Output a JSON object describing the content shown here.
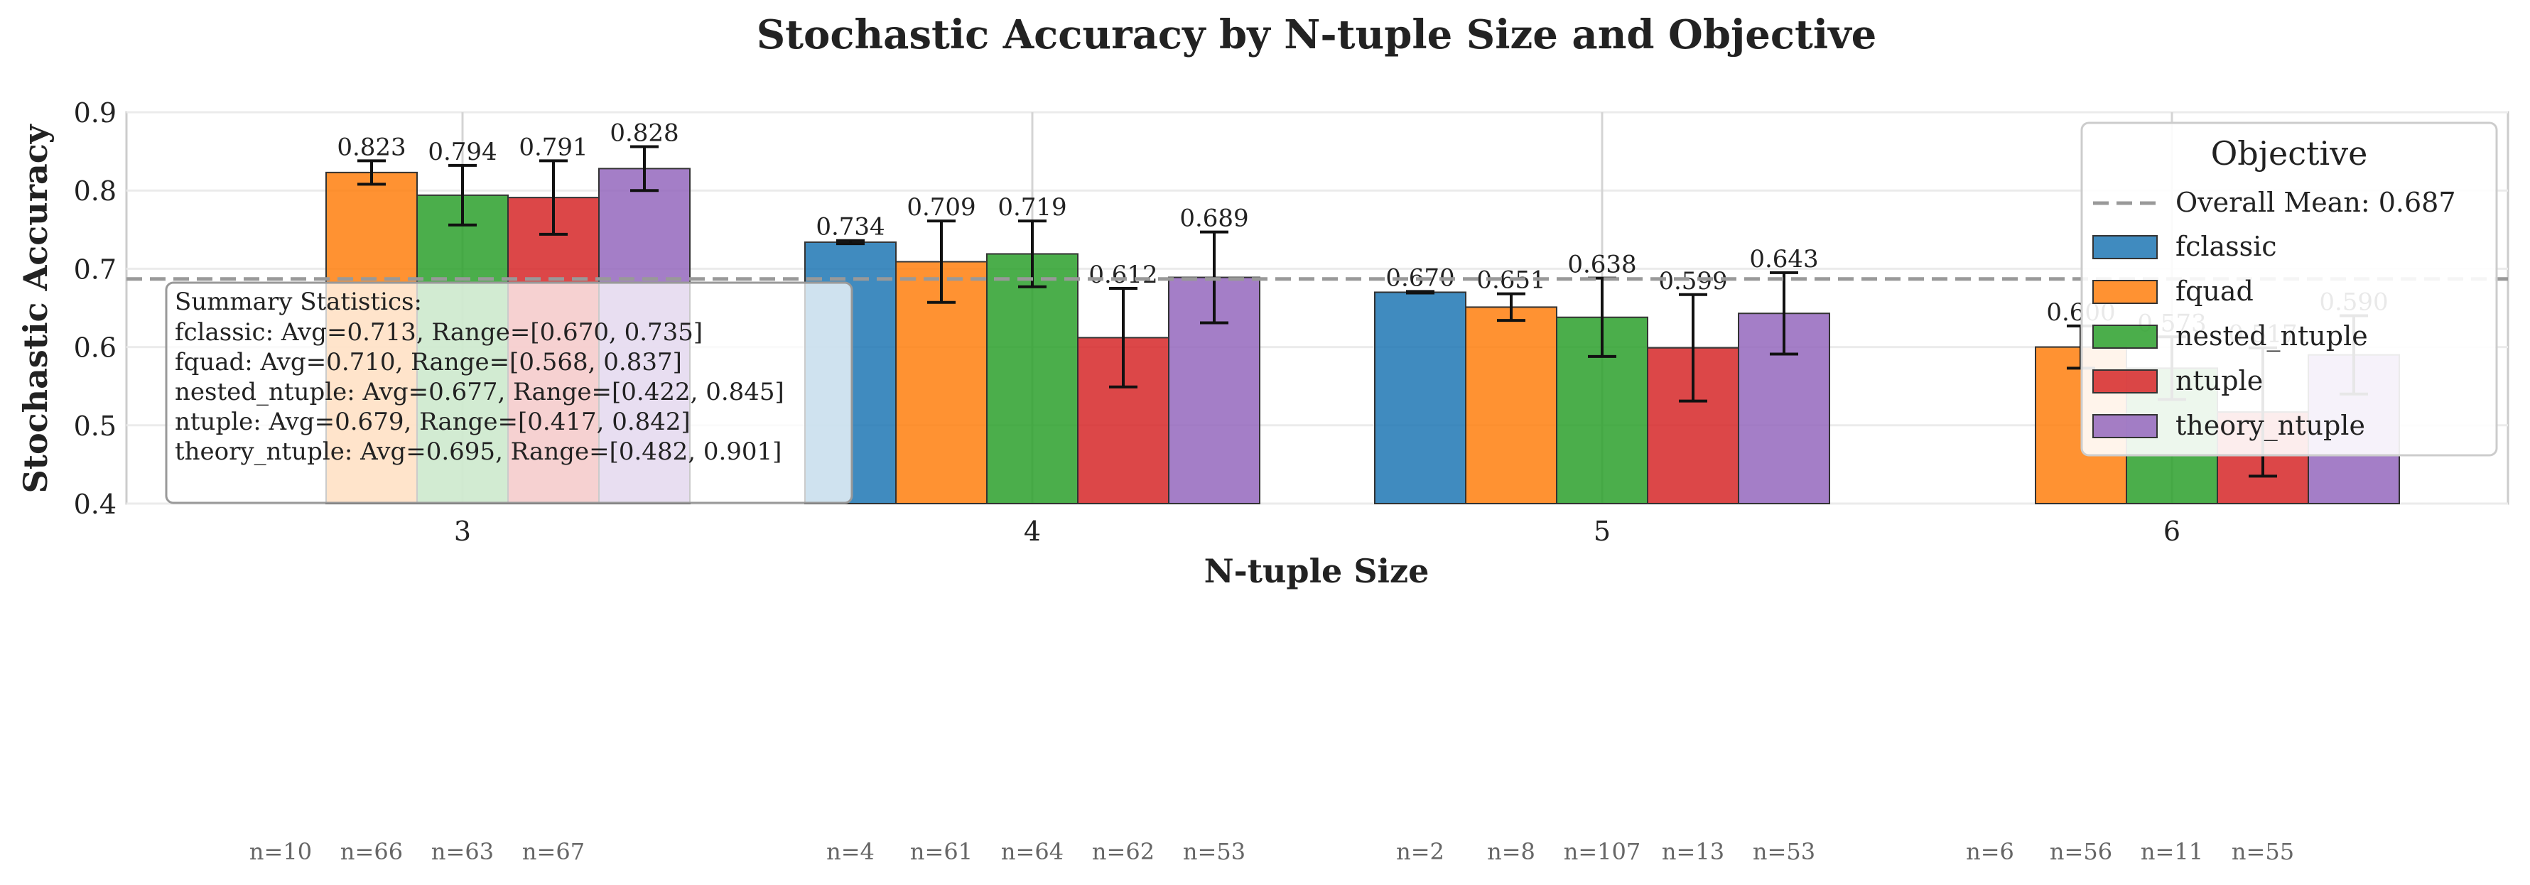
{
  "chart_data": {
    "type": "bar",
    "title": "Stochastic Accuracy by N-tuple Size and Objective",
    "xlabel": "N-tuple Size",
    "ylabel": "Stochastic Accuracy",
    "ylim": [
      0.4,
      0.9
    ],
    "yticks": [
      "0.4",
      "0.5",
      "0.6",
      "0.7",
      "0.8",
      "0.9"
    ],
    "categories": [
      "3",
      "4",
      "5",
      "6"
    ],
    "grid": true,
    "legend_title": "Objective",
    "legend_position": "top-right",
    "overall_mean": 0.687,
    "overall_mean_label": "Overall Mean: 0.687",
    "series": [
      {
        "name": "fclassic",
        "color": "#1f77b4",
        "values": [
          null,
          0.734,
          0.67,
          null
        ],
        "err": [
          null,
          0.002,
          0.001,
          null
        ],
        "labels": [
          "",
          "0.734",
          "0.670",
          ""
        ],
        "n": [
          "n=10",
          "n=4",
          "n=2",
          "n=6"
        ]
      },
      {
        "name": "fquad",
        "color": "#ff7f0e",
        "values": [
          0.823,
          0.709,
          0.651,
          0.6
        ],
        "err": [
          0.015,
          0.052,
          0.017,
          0.027
        ],
        "labels": [
          "0.823",
          "0.709",
          "0.651",
          "0.600"
        ],
        "n": [
          "n=66",
          "n=61",
          "n=8",
          "n=56"
        ]
      },
      {
        "name": "nested_ntuple",
        "color": "#2ca02c",
        "values": [
          0.794,
          0.719,
          0.638,
          0.573
        ],
        "err": [
          0.038,
          0.042,
          0.05,
          0.04
        ],
        "labels": [
          "0.794",
          "0.719",
          "0.638",
          "0.573"
        ],
        "n": [
          "n=63",
          "n=64",
          "n=107",
          "n=11"
        ]
      },
      {
        "name": "ntuple",
        "color": "#d62728",
        "values": [
          0.791,
          0.612,
          0.599,
          0.517
        ],
        "err": [
          0.047,
          0.063,
          0.068,
          0.082
        ],
        "labels": [
          "0.791",
          "0.612",
          "0.599",
          "0.517"
        ],
        "n": [
          "n=67",
          "n=62",
          "n=13",
          "n=55"
        ]
      },
      {
        "name": "theory_ntuple",
        "color": "#9467bd",
        "values": [
          0.828,
          0.689,
          0.643,
          0.59
        ],
        "err": [
          0.028,
          0.058,
          0.052,
          0.05
        ],
        "labels": [
          "0.828",
          "0.689",
          "0.643",
          "0.590"
        ],
        "n": [
          "",
          "n=53",
          "n=53",
          ""
        ]
      }
    ],
    "summary_box": {
      "title": "Summary Statistics:",
      "lines": [
        "fclassic: Avg=0.713, Range=[0.670, 0.735]",
        "fquad: Avg=0.710, Range=[0.568, 0.837]",
        "nested_ntuple: Avg=0.677, Range=[0.422, 0.845]",
        "ntuple: Avg=0.679, Range=[0.417, 0.842]",
        "theory_ntuple: Avg=0.695, Range=[0.482, 0.901]"
      ]
    }
  }
}
